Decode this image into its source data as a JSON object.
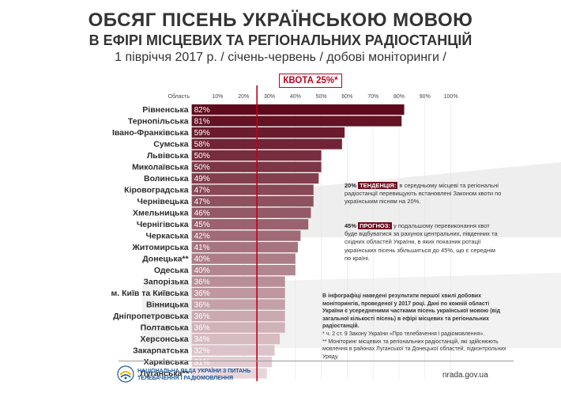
{
  "header": {
    "title": "ОБСЯГ ПІСЕНЬ УКРАЇНСЬКОЮ МОВОЮ",
    "subtitle": "В ЕФІРІ МІСЦЕВИХ ТА РЕГІОНАЛЬНИХ РАДІОСТАНЦІЙ",
    "period": "1 півріччя 2017 р.  / січень-червень / добові моніторинги /"
  },
  "quota": {
    "label": "КВОТА 25%*",
    "value": 25
  },
  "chart_data": {
    "type": "bar",
    "orientation": "horizontal",
    "category_header": "Область",
    "xlim": [
      0,
      100
    ],
    "ticks": [
      "10%",
      "20%",
      "30%",
      "40%",
      "50%",
      "60%",
      "70%",
      "80%",
      "90%",
      "100%"
    ],
    "categories": [
      "Рівненська",
      "Тернопільська",
      "Івано-Франківська",
      "Сумська",
      "Львівська",
      "Миколаївська",
      "Волинська",
      "Кіровоградська",
      "Чернівецька",
      "Хмельницька",
      "Чернігівська",
      "Черкаська",
      "Житомирська",
      "Донецька**",
      "Одеська",
      "Запорізька",
      "м. Київ та Київська",
      "Вінницька",
      "Дніпропетровська",
      "Полтавська",
      "Херсонська",
      "Закарпатська",
      "Харківська",
      "Луганська**"
    ],
    "values": [
      82,
      81,
      59,
      58,
      50,
      50,
      49,
      47,
      47,
      46,
      45,
      42,
      41,
      40,
      40,
      36,
      36,
      36,
      36,
      36,
      34,
      32,
      31,
      29
    ],
    "labels": [
      "82%",
      "81%",
      "59%",
      "58%",
      "50%",
      "50%",
      "49%",
      "47%",
      "47%",
      "46%",
      "45%",
      "42%",
      "41%",
      "40%",
      "40%",
      "36%",
      "36%",
      "36%",
      "36%",
      "36%",
      "34%",
      "32%",
      "31%",
      "29%"
    ],
    "reference_line": 25
  },
  "notes": {
    "trend_prefix": "20%",
    "trend_tag": "ТЕНДЕНЦІЯ:",
    "trend_text": "в середньому місцеві та регіональні радіостанції перевищують встановлені Законом квоти по українським пісням на 20%.",
    "forecast_prefix": "45%",
    "forecast_tag": "ПРОГНОЗ:",
    "forecast_text": "у подальшому перевиконання квот буде відбуватися за рахунок центральних, південних та східних областей України, в яких показник ротації українських пісень збільшиться до 45%, що є середнім по країні.",
    "info_text": "В інфографіці наведені результати першої хвилі добових моніторингів, проведеної у 2017 році. Дані по кожній області України є усередненими частками пісень української мовою (від загальної кількості пісень) в ефірі місцевих та регіональних радіостанцій.",
    "footnote1": "* ч. 2 ст. 9 Закону України «Про телебачення і радіомовлення».",
    "footnote2": "** Моніторинг місцевих та регіональних радіостанцій, які здійснюють мовлення в районах Луганської та Донецької областей, підконтрольних Уряду."
  },
  "footer": {
    "org_line1": "НАЦІОНАЛЬНА РАДА УКРАЇНИ З ПИТАНЬ",
    "org_line2": "ТЕЛЕБАЧЕННЯ І РАДІОМОВЛЕННЯ",
    "url": "nrada.gov.ua"
  },
  "colors": {
    "bar_dark": "#5e0a1c",
    "bar_light": "#e8d5da",
    "quota": "#c0001d",
    "tag": "#6e1020"
  }
}
